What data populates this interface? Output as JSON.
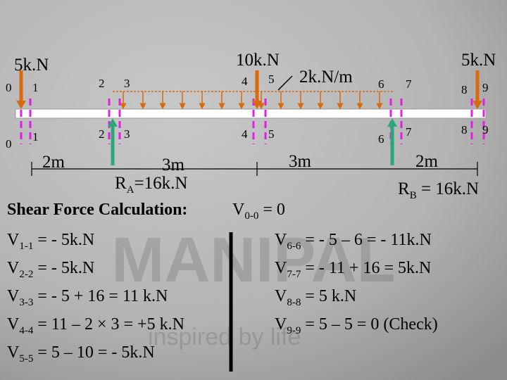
{
  "loads": {
    "left": "5k.N",
    "middle": "10k.N",
    "right": "5k.N",
    "udl": "2k.N/m"
  },
  "section_labels_top": [
    "0",
    "1",
    "2",
    "3",
    "4",
    "5",
    "6",
    "7",
    "8",
    "9"
  ],
  "section_labels_bottom": [
    "0",
    "1",
    "2",
    "3",
    "4",
    "5",
    "6",
    "7",
    "8",
    "9"
  ],
  "spans": [
    "2m",
    "3m",
    "3m",
    "2m"
  ],
  "reactions": {
    "a": {
      "var": "R",
      "sub": "A",
      "expr": "=16k.N"
    },
    "b": {
      "var": "R",
      "sub": "B",
      "expr": " = 16k.N"
    }
  },
  "heading": "Shear Force Calculation:",
  "first": {
    "var": "V",
    "sub": "0-0",
    "expr": " = 0"
  },
  "left_equations": [
    {
      "var": "V",
      "sub": "1-1",
      "expr": " = - 5k.N"
    },
    {
      "var": "V",
      "sub": "2-2",
      "expr": " = - 5k.N"
    },
    {
      "var": "V",
      "sub": "3-3",
      "expr": " = - 5  + 16 = 11 k.N"
    },
    {
      "var": "V",
      "sub": "4-4",
      "expr": " = 11 – 2 × 3 = +5 k.N"
    },
    {
      "var": "V",
      "sub": "5-5",
      "expr": " = 5 – 10 = - 5k.N"
    }
  ],
  "right_equations": [
    {
      "var": "V",
      "sub": "6-6",
      "expr": " = - 5 – 6 = - 11k.N"
    },
    {
      "var": "V",
      "sub": "7-7",
      "expr": " = - 11 + 16 = 5k.N"
    },
    {
      "var": "V",
      "sub": "8-8",
      "expr": " = 5 k.N"
    },
    {
      "var": "V",
      "sub": "9-9",
      "expr": " = 5 – 5 = 0 (Check)"
    }
  ],
  "watermark": {
    "brand": "MANIPAL",
    "tagline": "inspired by life"
  }
}
